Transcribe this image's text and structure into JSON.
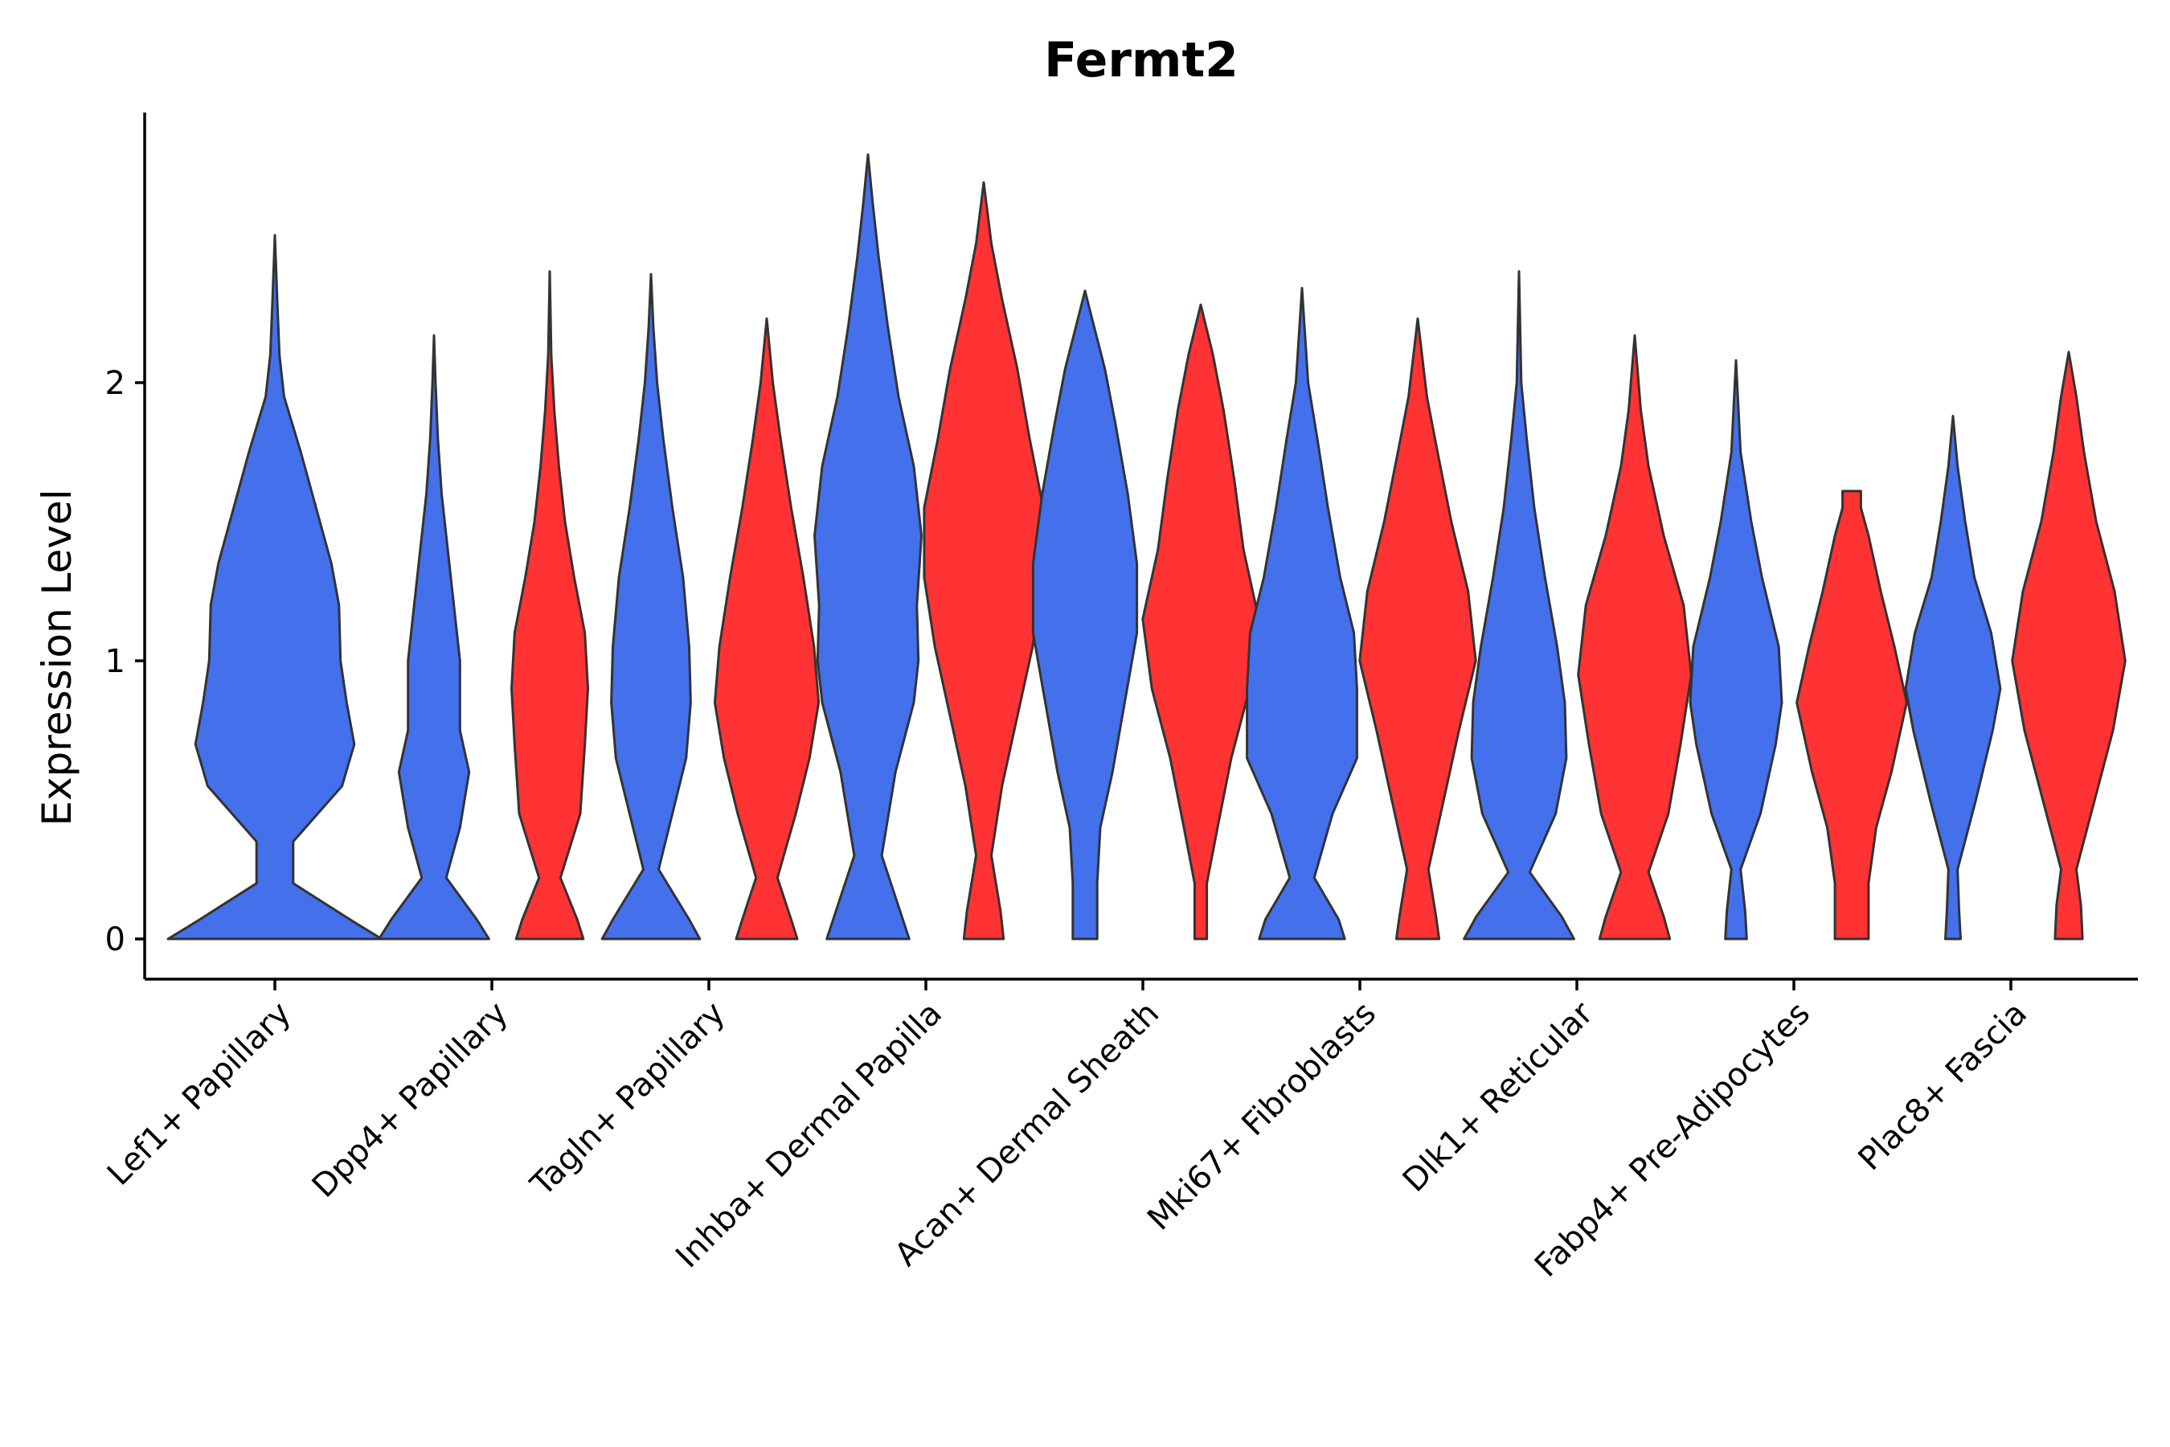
{
  "chart_data": {
    "type": "violin",
    "title": "Fermt2",
    "xlabel": "",
    "ylabel": "Expression Level",
    "ylim": [
      -0.14,
      2.98
    ],
    "yticks": [
      0,
      1,
      2
    ],
    "colors": {
      "blue": "#4470EC",
      "red": "#FF3333"
    },
    "categories": [
      "Lef1+ Papillary",
      "Dpp4+ Papillary",
      "Tagln+ Papillary",
      "Inhba+ Dermal Papilla",
      "Acan+ Dermal Sheath",
      "Mki67+ Fibroblasts",
      "Dlk1+ Reticular",
      "Fabp4+ Pre-Adipocytes",
      "Plac8+ Fascia"
    ],
    "violins": [
      {
        "category": "Lef1+ Papillary",
        "group": "blue",
        "max": 2.53,
        "profile": [
          [
            0,
            0.7
          ],
          [
            0.06,
            0.52
          ],
          [
            0.2,
            0.12
          ],
          [
            0.35,
            0.12
          ],
          [
            0.55,
            0.44
          ],
          [
            0.7,
            0.52
          ],
          [
            0.85,
            0.47
          ],
          [
            1.0,
            0.43
          ],
          [
            1.2,
            0.42
          ],
          [
            1.35,
            0.37
          ],
          [
            1.55,
            0.27
          ],
          [
            1.75,
            0.17
          ],
          [
            1.95,
            0.06
          ],
          [
            2.1,
            0.03
          ],
          [
            2.3,
            0.015
          ],
          [
            2.53,
            0
          ]
        ]
      },
      {
        "category": "Dpp4+ Papillary",
        "group": "blue",
        "max": 2.17,
        "profile": [
          [
            0,
            0.36
          ],
          [
            0.07,
            0.28
          ],
          [
            0.22,
            0.08
          ],
          [
            0.4,
            0.17
          ],
          [
            0.6,
            0.23
          ],
          [
            0.75,
            0.17
          ],
          [
            0.9,
            0.17
          ],
          [
            1.0,
            0.17
          ],
          [
            1.2,
            0.13
          ],
          [
            1.4,
            0.09
          ],
          [
            1.6,
            0.05
          ],
          [
            1.8,
            0.025
          ],
          [
            2.0,
            0.01
          ],
          [
            2.17,
            0
          ]
        ]
      },
      {
        "category": "Dpp4+ Papillary",
        "group": "red",
        "max": 2.4,
        "profile": [
          [
            0,
            0.22
          ],
          [
            0.07,
            0.18
          ],
          [
            0.22,
            0.07
          ],
          [
            0.45,
            0.2
          ],
          [
            0.7,
            0.23
          ],
          [
            0.9,
            0.25
          ],
          [
            1.1,
            0.23
          ],
          [
            1.3,
            0.16
          ],
          [
            1.5,
            0.1
          ],
          [
            1.7,
            0.06
          ],
          [
            1.9,
            0.03
          ],
          [
            2.1,
            0.01
          ],
          [
            2.4,
            0
          ]
        ]
      },
      {
        "category": "Tagln+ Papillary",
        "group": "blue",
        "max": 2.39,
        "profile": [
          [
            0,
            0.32
          ],
          [
            0.07,
            0.25
          ],
          [
            0.25,
            0.05
          ],
          [
            0.45,
            0.14
          ],
          [
            0.65,
            0.23
          ],
          [
            0.85,
            0.26
          ],
          [
            1.05,
            0.25
          ],
          [
            1.3,
            0.21
          ],
          [
            1.55,
            0.14
          ],
          [
            1.8,
            0.08
          ],
          [
            2.0,
            0.04
          ],
          [
            2.2,
            0.015
          ],
          [
            2.39,
            0
          ]
        ]
      },
      {
        "category": "Tagln+ Papillary",
        "group": "red",
        "max": 2.23,
        "profile": [
          [
            0,
            0.2
          ],
          [
            0.07,
            0.16
          ],
          [
            0.22,
            0.07
          ],
          [
            0.45,
            0.19
          ],
          [
            0.65,
            0.28
          ],
          [
            0.85,
            0.34
          ],
          [
            1.05,
            0.31
          ],
          [
            1.3,
            0.24
          ],
          [
            1.55,
            0.16
          ],
          [
            1.8,
            0.09
          ],
          [
            2.0,
            0.04
          ],
          [
            2.23,
            0
          ]
        ]
      },
      {
        "category": "Inhba+ Dermal Papilla",
        "group": "blue",
        "max": 2.82,
        "profile": [
          [
            0,
            0.27
          ],
          [
            0.1,
            0.21
          ],
          [
            0.3,
            0.09
          ],
          [
            0.6,
            0.18
          ],
          [
            0.85,
            0.3
          ],
          [
            1.0,
            0.33
          ],
          [
            1.2,
            0.32
          ],
          [
            1.45,
            0.35
          ],
          [
            1.7,
            0.3
          ],
          [
            1.95,
            0.2
          ],
          [
            2.2,
            0.13
          ],
          [
            2.45,
            0.07
          ],
          [
            2.65,
            0.03
          ],
          [
            2.82,
            0
          ]
        ]
      },
      {
        "category": "Inhba+ Dermal Papilla",
        "group": "red",
        "max": 2.72,
        "profile": [
          [
            0,
            0.13
          ],
          [
            0.1,
            0.11
          ],
          [
            0.3,
            0.05
          ],
          [
            0.55,
            0.12
          ],
          [
            0.8,
            0.22
          ],
          [
            1.05,
            0.32
          ],
          [
            1.3,
            0.39
          ],
          [
            1.55,
            0.39
          ],
          [
            1.8,
            0.3
          ],
          [
            2.05,
            0.22
          ],
          [
            2.3,
            0.12
          ],
          [
            2.5,
            0.05
          ],
          [
            2.72,
            0
          ]
        ]
      },
      {
        "category": "Acan+ Dermal Sheath",
        "group": "blue",
        "max": 2.33,
        "profile": [
          [
            0,
            0.08
          ],
          [
            0.2,
            0.08
          ],
          [
            0.4,
            0.1
          ],
          [
            0.6,
            0.18
          ],
          [
            0.85,
            0.26
          ],
          [
            1.1,
            0.34
          ],
          [
            1.35,
            0.34
          ],
          [
            1.6,
            0.28
          ],
          [
            1.85,
            0.2
          ],
          [
            2.05,
            0.13
          ],
          [
            2.2,
            0.06
          ],
          [
            2.33,
            0
          ]
        ]
      },
      {
        "category": "Acan+ Dermal Sheath",
        "group": "red",
        "max": 2.28,
        "profile": [
          [
            0,
            0.04
          ],
          [
            0.2,
            0.04
          ],
          [
            0.4,
            0.11
          ],
          [
            0.65,
            0.2
          ],
          [
            0.9,
            0.32
          ],
          [
            1.15,
            0.38
          ],
          [
            1.4,
            0.28
          ],
          [
            1.65,
            0.22
          ],
          [
            1.9,
            0.15
          ],
          [
            2.1,
            0.08
          ],
          [
            2.28,
            0
          ]
        ]
      },
      {
        "category": "Mki67+ Fibroblasts",
        "group": "blue",
        "max": 2.34,
        "profile": [
          [
            0,
            0.28
          ],
          [
            0.07,
            0.24
          ],
          [
            0.22,
            0.08
          ],
          [
            0.45,
            0.2
          ],
          [
            0.65,
            0.36
          ],
          [
            0.9,
            0.36
          ],
          [
            1.1,
            0.34
          ],
          [
            1.3,
            0.25
          ],
          [
            1.55,
            0.17
          ],
          [
            1.8,
            0.1
          ],
          [
            2.0,
            0.04
          ],
          [
            2.34,
            0
          ]
        ]
      },
      {
        "category": "Mki67+ Fibroblasts",
        "group": "red",
        "max": 2.23,
        "profile": [
          [
            0,
            0.14
          ],
          [
            0.08,
            0.12
          ],
          [
            0.25,
            0.07
          ],
          [
            0.5,
            0.17
          ],
          [
            0.75,
            0.27
          ],
          [
            1.0,
            0.38
          ],
          [
            1.25,
            0.33
          ],
          [
            1.5,
            0.22
          ],
          [
            1.75,
            0.13
          ],
          [
            1.95,
            0.06
          ],
          [
            2.23,
            0
          ]
        ]
      },
      {
        "category": "Dlk1+ Reticular",
        "group": "blue",
        "max": 2.4,
        "profile": [
          [
            0,
            0.36
          ],
          [
            0.08,
            0.28
          ],
          [
            0.24,
            0.07
          ],
          [
            0.45,
            0.24
          ],
          [
            0.65,
            0.31
          ],
          [
            0.85,
            0.3
          ],
          [
            1.05,
            0.25
          ],
          [
            1.3,
            0.17
          ],
          [
            1.55,
            0.1
          ],
          [
            1.8,
            0.05
          ],
          [
            2.0,
            0.015
          ],
          [
            2.4,
            0
          ]
        ]
      },
      {
        "category": "Dlk1+ Reticular",
        "group": "red",
        "max": 2.17,
        "profile": [
          [
            0,
            0.23
          ],
          [
            0.08,
            0.19
          ],
          [
            0.24,
            0.09
          ],
          [
            0.45,
            0.22
          ],
          [
            0.7,
            0.3
          ],
          [
            0.95,
            0.37
          ],
          [
            1.2,
            0.32
          ],
          [
            1.45,
            0.19
          ],
          [
            1.7,
            0.09
          ],
          [
            1.9,
            0.04
          ],
          [
            2.17,
            0
          ]
        ]
      },
      {
        "category": "Fabp4+ Pre-Adipocytes",
        "group": "blue",
        "max": 2.08,
        "profile": [
          [
            0,
            0.07
          ],
          [
            0.1,
            0.06
          ],
          [
            0.25,
            0.03
          ],
          [
            0.45,
            0.16
          ],
          [
            0.7,
            0.26
          ],
          [
            0.85,
            0.3
          ],
          [
            1.05,
            0.28
          ],
          [
            1.3,
            0.17
          ],
          [
            1.5,
            0.1
          ],
          [
            1.75,
            0.03
          ],
          [
            2.08,
            0
          ]
        ]
      },
      {
        "category": "Fabp4+ Pre-Adipocytes",
        "group": "red",
        "max": 1.61,
        "profile": [
          [
            0,
            0.11
          ],
          [
            0.2,
            0.11
          ],
          [
            0.4,
            0.16
          ],
          [
            0.6,
            0.26
          ],
          [
            0.85,
            0.36
          ],
          [
            1.05,
            0.28
          ],
          [
            1.25,
            0.19
          ],
          [
            1.45,
            0.11
          ],
          [
            1.55,
            0.06
          ],
          [
            1.61,
            0.06
          ]
        ]
      },
      {
        "category": "Plac8+ Fascia",
        "group": "blue",
        "max": 1.88,
        "profile": [
          [
            0,
            0.05
          ],
          [
            0.1,
            0.04
          ],
          [
            0.25,
            0.03
          ],
          [
            0.5,
            0.15
          ],
          [
            0.75,
            0.26
          ],
          [
            0.9,
            0.31
          ],
          [
            1.1,
            0.25
          ],
          [
            1.3,
            0.14
          ],
          [
            1.5,
            0.08
          ],
          [
            1.7,
            0.03
          ],
          [
            1.88,
            0
          ]
        ]
      },
      {
        "category": "Plac8+ Fascia",
        "group": "red",
        "max": 2.11,
        "profile": [
          [
            0,
            0.09
          ],
          [
            0.12,
            0.08
          ],
          [
            0.25,
            0.05
          ],
          [
            0.5,
            0.17
          ],
          [
            0.75,
            0.29
          ],
          [
            1.0,
            0.37
          ],
          [
            1.25,
            0.3
          ],
          [
            1.5,
            0.18
          ],
          [
            1.75,
            0.1
          ],
          [
            1.95,
            0.05
          ],
          [
            2.11,
            0
          ]
        ]
      }
    ]
  }
}
